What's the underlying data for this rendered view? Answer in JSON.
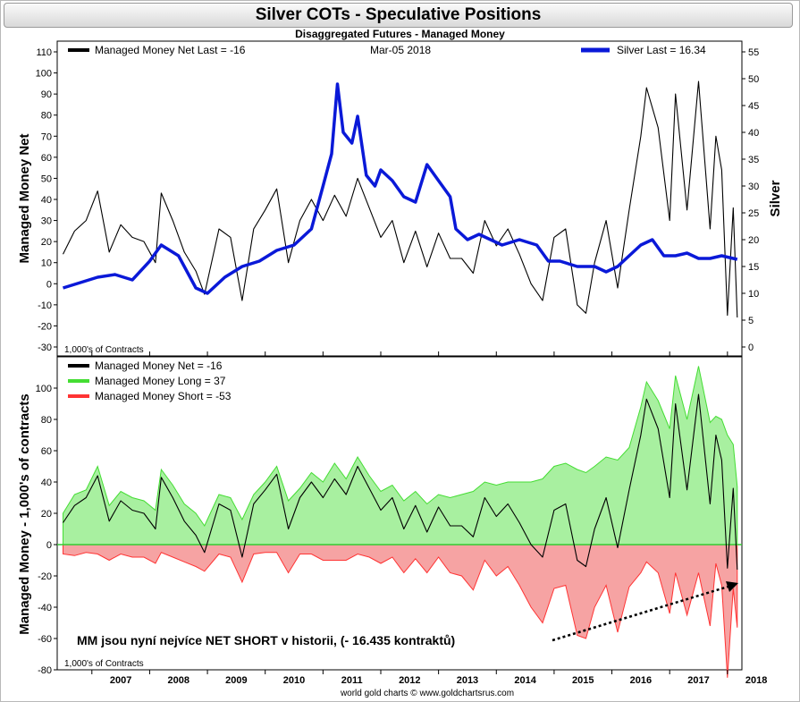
{
  "header": {
    "title": "Silver COTs - Speculative Positions",
    "subtitle": "Disaggregated Futures - Managed Money",
    "footer": "world gold charts © www.goldchartsrus.com"
  },
  "colors": {
    "net": "#000000",
    "silver": "#0a19d8",
    "long_fill": "#a8f0a0",
    "long_line": "#44dd33",
    "short_fill": "#f6a3a3",
    "short_line": "#ff3333",
    "zero_line": "#33cc33"
  },
  "chart_data": [
    {
      "type": "line",
      "title": "",
      "legend_net": "Managed Money Net   Last = -16",
      "legend_date": "Mar-05  2018",
      "legend_silver": "Silver Last = 16.34",
      "ylabel_left": "Managed Money Net",
      "ylabel_right": "Silver",
      "units_note": "1,000's of Contracts",
      "ylim_left": [
        -30,
        110
      ],
      "ylim_right": [
        0,
        55
      ],
      "y_ticks_left": [
        -30,
        -20,
        -10,
        0,
        10,
        20,
        30,
        40,
        50,
        60,
        70,
        80,
        90,
        100,
        110
      ],
      "y_ticks_right": [
        0,
        5,
        10,
        15,
        20,
        25,
        30,
        35,
        40,
        45,
        50,
        55
      ],
      "x_years": [
        "2007",
        "2008",
        "2009",
        "2010",
        "2011",
        "2012",
        "2013",
        "2014",
        "2015",
        "2016",
        "2017",
        "2018"
      ],
      "series": [
        {
          "name": "Managed Money Net",
          "axis": "left",
          "x": [
            2006.5,
            2006.7,
            2006.9,
            2007.1,
            2007.3,
            2007.5,
            2007.7,
            2007.9,
            2008.1,
            2008.2,
            2008.4,
            2008.6,
            2008.8,
            2008.95,
            2009.2,
            2009.4,
            2009.6,
            2009.8,
            2010.0,
            2010.2,
            2010.4,
            2010.6,
            2010.8,
            2011.0,
            2011.2,
            2011.4,
            2011.6,
            2011.8,
            2012.0,
            2012.2,
            2012.4,
            2012.6,
            2012.8,
            2013.0,
            2013.2,
            2013.4,
            2013.6,
            2013.8,
            2014.0,
            2014.2,
            2014.4,
            2014.6,
            2014.8,
            2015.0,
            2015.2,
            2015.4,
            2015.55,
            2015.7,
            2015.9,
            2016.1,
            2016.3,
            2016.5,
            2016.6,
            2016.8,
            2017.0,
            2017.1,
            2017.3,
            2017.5,
            2017.7,
            2017.8,
            2017.9,
            2018.0,
            2018.1,
            2018.17
          ],
          "values": [
            14,
            25,
            30,
            44,
            15,
            28,
            22,
            20,
            10,
            43,
            30,
            15,
            6,
            -5,
            26,
            22,
            -8,
            26,
            35,
            45,
            10,
            30,
            40,
            30,
            42,
            32,
            50,
            36,
            22,
            30,
            10,
            25,
            8,
            24,
            12,
            12,
            5,
            30,
            18,
            26,
            14,
            0,
            -8,
            22,
            26,
            -10,
            -14,
            10,
            30,
            -2,
            35,
            70,
            93,
            74,
            30,
            90,
            35,
            96,
            26,
            70,
            54,
            -15,
            36,
            -16
          ]
        },
        {
          "name": "Silver",
          "axis": "right",
          "x": [
            2006.5,
            2006.8,
            2007.1,
            2007.4,
            2007.7,
            2008.0,
            2008.2,
            2008.5,
            2008.8,
            2009.0,
            2009.3,
            2009.6,
            2009.9,
            2010.2,
            2010.5,
            2010.8,
            2011.0,
            2011.15,
            2011.25,
            2011.35,
            2011.5,
            2011.6,
            2011.75,
            2011.9,
            2012.0,
            2012.2,
            2012.4,
            2012.6,
            2012.8,
            2013.0,
            2013.2,
            2013.3,
            2013.5,
            2013.7,
            2013.9,
            2014.1,
            2014.4,
            2014.7,
            2014.9,
            2015.1,
            2015.4,
            2015.7,
            2015.9,
            2016.1,
            2016.3,
            2016.5,
            2016.7,
            2016.9,
            2017.1,
            2017.3,
            2017.5,
            2017.7,
            2017.9,
            2018.1,
            2018.17
          ],
          "values": [
            11,
            12,
            13,
            13.5,
            12.5,
            16,
            19,
            17,
            11,
            10,
            13,
            15,
            16,
            18,
            19,
            22,
            30,
            36,
            49,
            40,
            38,
            43,
            32,
            30,
            33,
            31,
            28,
            27,
            34,
            31,
            28,
            22,
            20,
            21,
            20,
            19,
            20,
            19,
            16,
            16,
            15,
            15,
            14,
            15,
            17,
            19,
            20,
            17,
            17,
            17.5,
            16.5,
            16.5,
            17,
            16.5,
            16.34
          ]
        }
      ]
    },
    {
      "type": "area",
      "legend": [
        "Managed Money Net     = -16",
        "Managed Money Long    = 37",
        "Managed Money Short   = -53"
      ],
      "ylabel": "Managed Money - 1,000's of contracts",
      "units_note": "1,000's of Contracts",
      "annotation": "MM jsou nyní nejvíce NET SHORT v historii, (- 16.435 kontraktů)",
      "ylim": [
        -80,
        120
      ],
      "y_ticks": [
        -80,
        -60,
        -40,
        -20,
        0,
        20,
        40,
        60,
        80,
        100
      ],
      "x_years": [
        "2007",
        "2008",
        "2009",
        "2010",
        "2011",
        "2012",
        "2013",
        "2014",
        "2015",
        "2016",
        "2017",
        "2018"
      ],
      "series": [
        {
          "name": "Managed Money Net",
          "x": [
            2006.5,
            2006.7,
            2006.9,
            2007.1,
            2007.3,
            2007.5,
            2007.7,
            2007.9,
            2008.1,
            2008.2,
            2008.4,
            2008.6,
            2008.8,
            2008.95,
            2009.2,
            2009.4,
            2009.6,
            2009.8,
            2010.0,
            2010.2,
            2010.4,
            2010.6,
            2010.8,
            2011.0,
            2011.2,
            2011.4,
            2011.6,
            2011.8,
            2012.0,
            2012.2,
            2012.4,
            2012.6,
            2012.8,
            2013.0,
            2013.2,
            2013.4,
            2013.6,
            2013.8,
            2014.0,
            2014.2,
            2014.4,
            2014.6,
            2014.8,
            2015.0,
            2015.2,
            2015.4,
            2015.55,
            2015.7,
            2015.9,
            2016.1,
            2016.3,
            2016.5,
            2016.6,
            2016.8,
            2017.0,
            2017.1,
            2017.3,
            2017.5,
            2017.7,
            2017.8,
            2017.9,
            2018.0,
            2018.1,
            2018.17
          ],
          "values": [
            14,
            25,
            30,
            44,
            15,
            28,
            22,
            20,
            10,
            43,
            30,
            15,
            6,
            -5,
            26,
            22,
            -8,
            26,
            35,
            45,
            10,
            30,
            40,
            30,
            42,
            32,
            50,
            36,
            22,
            30,
            10,
            25,
            8,
            24,
            12,
            12,
            5,
            30,
            18,
            26,
            14,
            0,
            -8,
            22,
            26,
            -10,
            -14,
            10,
            30,
            -2,
            35,
            70,
            93,
            74,
            30,
            90,
            35,
            96,
            26,
            70,
            54,
            -15,
            36,
            -16
          ]
        },
        {
          "name": "Managed Money Long",
          "x": [
            2006.5,
            2006.7,
            2006.9,
            2007.1,
            2007.3,
            2007.5,
            2007.7,
            2007.9,
            2008.1,
            2008.2,
            2008.4,
            2008.6,
            2008.8,
            2008.95,
            2009.2,
            2009.4,
            2009.6,
            2009.8,
            2010.0,
            2010.2,
            2010.4,
            2010.6,
            2010.8,
            2011.0,
            2011.2,
            2011.4,
            2011.6,
            2011.8,
            2012.0,
            2012.2,
            2012.4,
            2012.6,
            2012.8,
            2013.0,
            2013.2,
            2013.4,
            2013.6,
            2013.8,
            2014.0,
            2014.2,
            2014.4,
            2014.6,
            2014.8,
            2015.0,
            2015.2,
            2015.4,
            2015.55,
            2015.7,
            2015.9,
            2016.1,
            2016.3,
            2016.5,
            2016.6,
            2016.8,
            2017.0,
            2017.1,
            2017.3,
            2017.5,
            2017.7,
            2017.8,
            2017.9,
            2018.0,
            2018.1,
            2018.17
          ],
          "values": [
            20,
            32,
            35,
            50,
            25,
            34,
            30,
            28,
            22,
            48,
            38,
            26,
            20,
            12,
            32,
            30,
            16,
            32,
            40,
            50,
            28,
            36,
            46,
            40,
            52,
            42,
            56,
            44,
            34,
            38,
            28,
            34,
            26,
            32,
            30,
            32,
            34,
            40,
            38,
            40,
            40,
            40,
            42,
            50,
            52,
            48,
            46,
            50,
            56,
            54,
            62,
            88,
            104,
            92,
            74,
            108,
            80,
            114,
            78,
            82,
            80,
            70,
            64,
            37
          ]
        },
        {
          "name": "Managed Money Short",
          "x": [
            2006.5,
            2006.7,
            2006.9,
            2007.1,
            2007.3,
            2007.5,
            2007.7,
            2007.9,
            2008.1,
            2008.2,
            2008.4,
            2008.6,
            2008.8,
            2008.95,
            2009.2,
            2009.4,
            2009.6,
            2009.8,
            2010.0,
            2010.2,
            2010.4,
            2010.6,
            2010.8,
            2011.0,
            2011.2,
            2011.4,
            2011.6,
            2011.8,
            2012.0,
            2012.2,
            2012.4,
            2012.6,
            2012.8,
            2013.0,
            2013.2,
            2013.4,
            2013.6,
            2013.8,
            2014.0,
            2014.2,
            2014.4,
            2014.6,
            2014.8,
            2015.0,
            2015.2,
            2015.4,
            2015.55,
            2015.7,
            2015.9,
            2016.1,
            2016.3,
            2016.5,
            2016.6,
            2016.8,
            2017.0,
            2017.1,
            2017.3,
            2017.5,
            2017.7,
            2017.8,
            2017.9,
            2018.0,
            2018.1,
            2018.17
          ],
          "values": [
            -6,
            -7,
            -5,
            -6,
            -10,
            -6,
            -8,
            -8,
            -12,
            -5,
            -8,
            -11,
            -14,
            -17,
            -6,
            -8,
            -24,
            -6,
            -5,
            -5,
            -18,
            -6,
            -6,
            -10,
            -10,
            -10,
            -6,
            -8,
            -12,
            -8,
            -18,
            -9,
            -18,
            -8,
            -18,
            -20,
            -29,
            -10,
            -20,
            -14,
            -26,
            -40,
            -50,
            -28,
            -26,
            -58,
            -60,
            -40,
            -26,
            -56,
            -27,
            -18,
            -11,
            -18,
            -44,
            -18,
            -45,
            -18,
            -52,
            -12,
            -26,
            -85,
            -28,
            -53
          ]
        }
      ]
    }
  ]
}
